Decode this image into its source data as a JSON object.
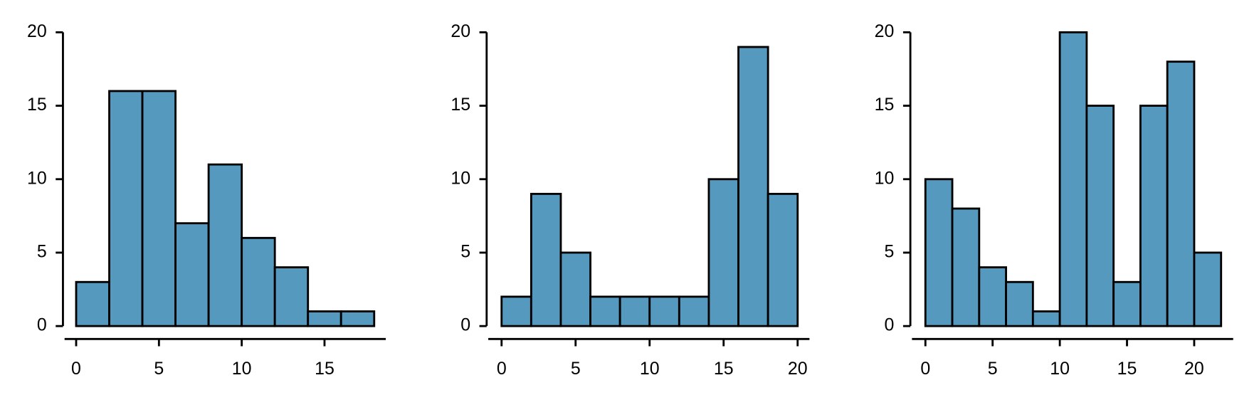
{
  "chart_data": [
    {
      "type": "histogram",
      "bins": [
        0,
        2,
        4,
        6,
        8,
        10,
        12,
        14,
        16,
        18
      ],
      "values": [
        3,
        16,
        16,
        7,
        11,
        6,
        4,
        1,
        1
      ],
      "color": "#5599bf",
      "xlim": [
        -0.7,
        18.7
      ],
      "ylim": [
        0,
        20
      ],
      "xticks": [
        0,
        5,
        10,
        15
      ],
      "yticks": [
        0,
        5,
        10,
        15,
        20
      ]
    },
    {
      "type": "histogram",
      "bins": [
        0,
        2,
        4,
        6,
        8,
        10,
        12,
        14,
        16,
        18,
        20
      ],
      "values": [
        2,
        9,
        5,
        2,
        2,
        2,
        2,
        10,
        19,
        9
      ],
      "color": "#5599bf",
      "xlim": [
        -0.9,
        20.8
      ],
      "ylim": [
        0,
        20
      ],
      "xticks": [
        0,
        5,
        10,
        15,
        20
      ],
      "yticks": [
        0,
        5,
        10,
        15,
        20
      ]
    },
    {
      "type": "histogram",
      "bins": [
        0,
        2,
        4,
        6,
        8,
        10,
        12,
        14,
        16,
        18,
        20,
        22
      ],
      "values": [
        10,
        8,
        4,
        3,
        1,
        20,
        15,
        3,
        15,
        18,
        5
      ],
      "color": "#5599bf",
      "xlim": [
        -1,
        22.9
      ],
      "ylim": [
        0,
        20
      ],
      "xticks": [
        0,
        5,
        10,
        15,
        20
      ],
      "yticks": [
        0,
        5,
        10,
        15,
        20
      ]
    }
  ]
}
